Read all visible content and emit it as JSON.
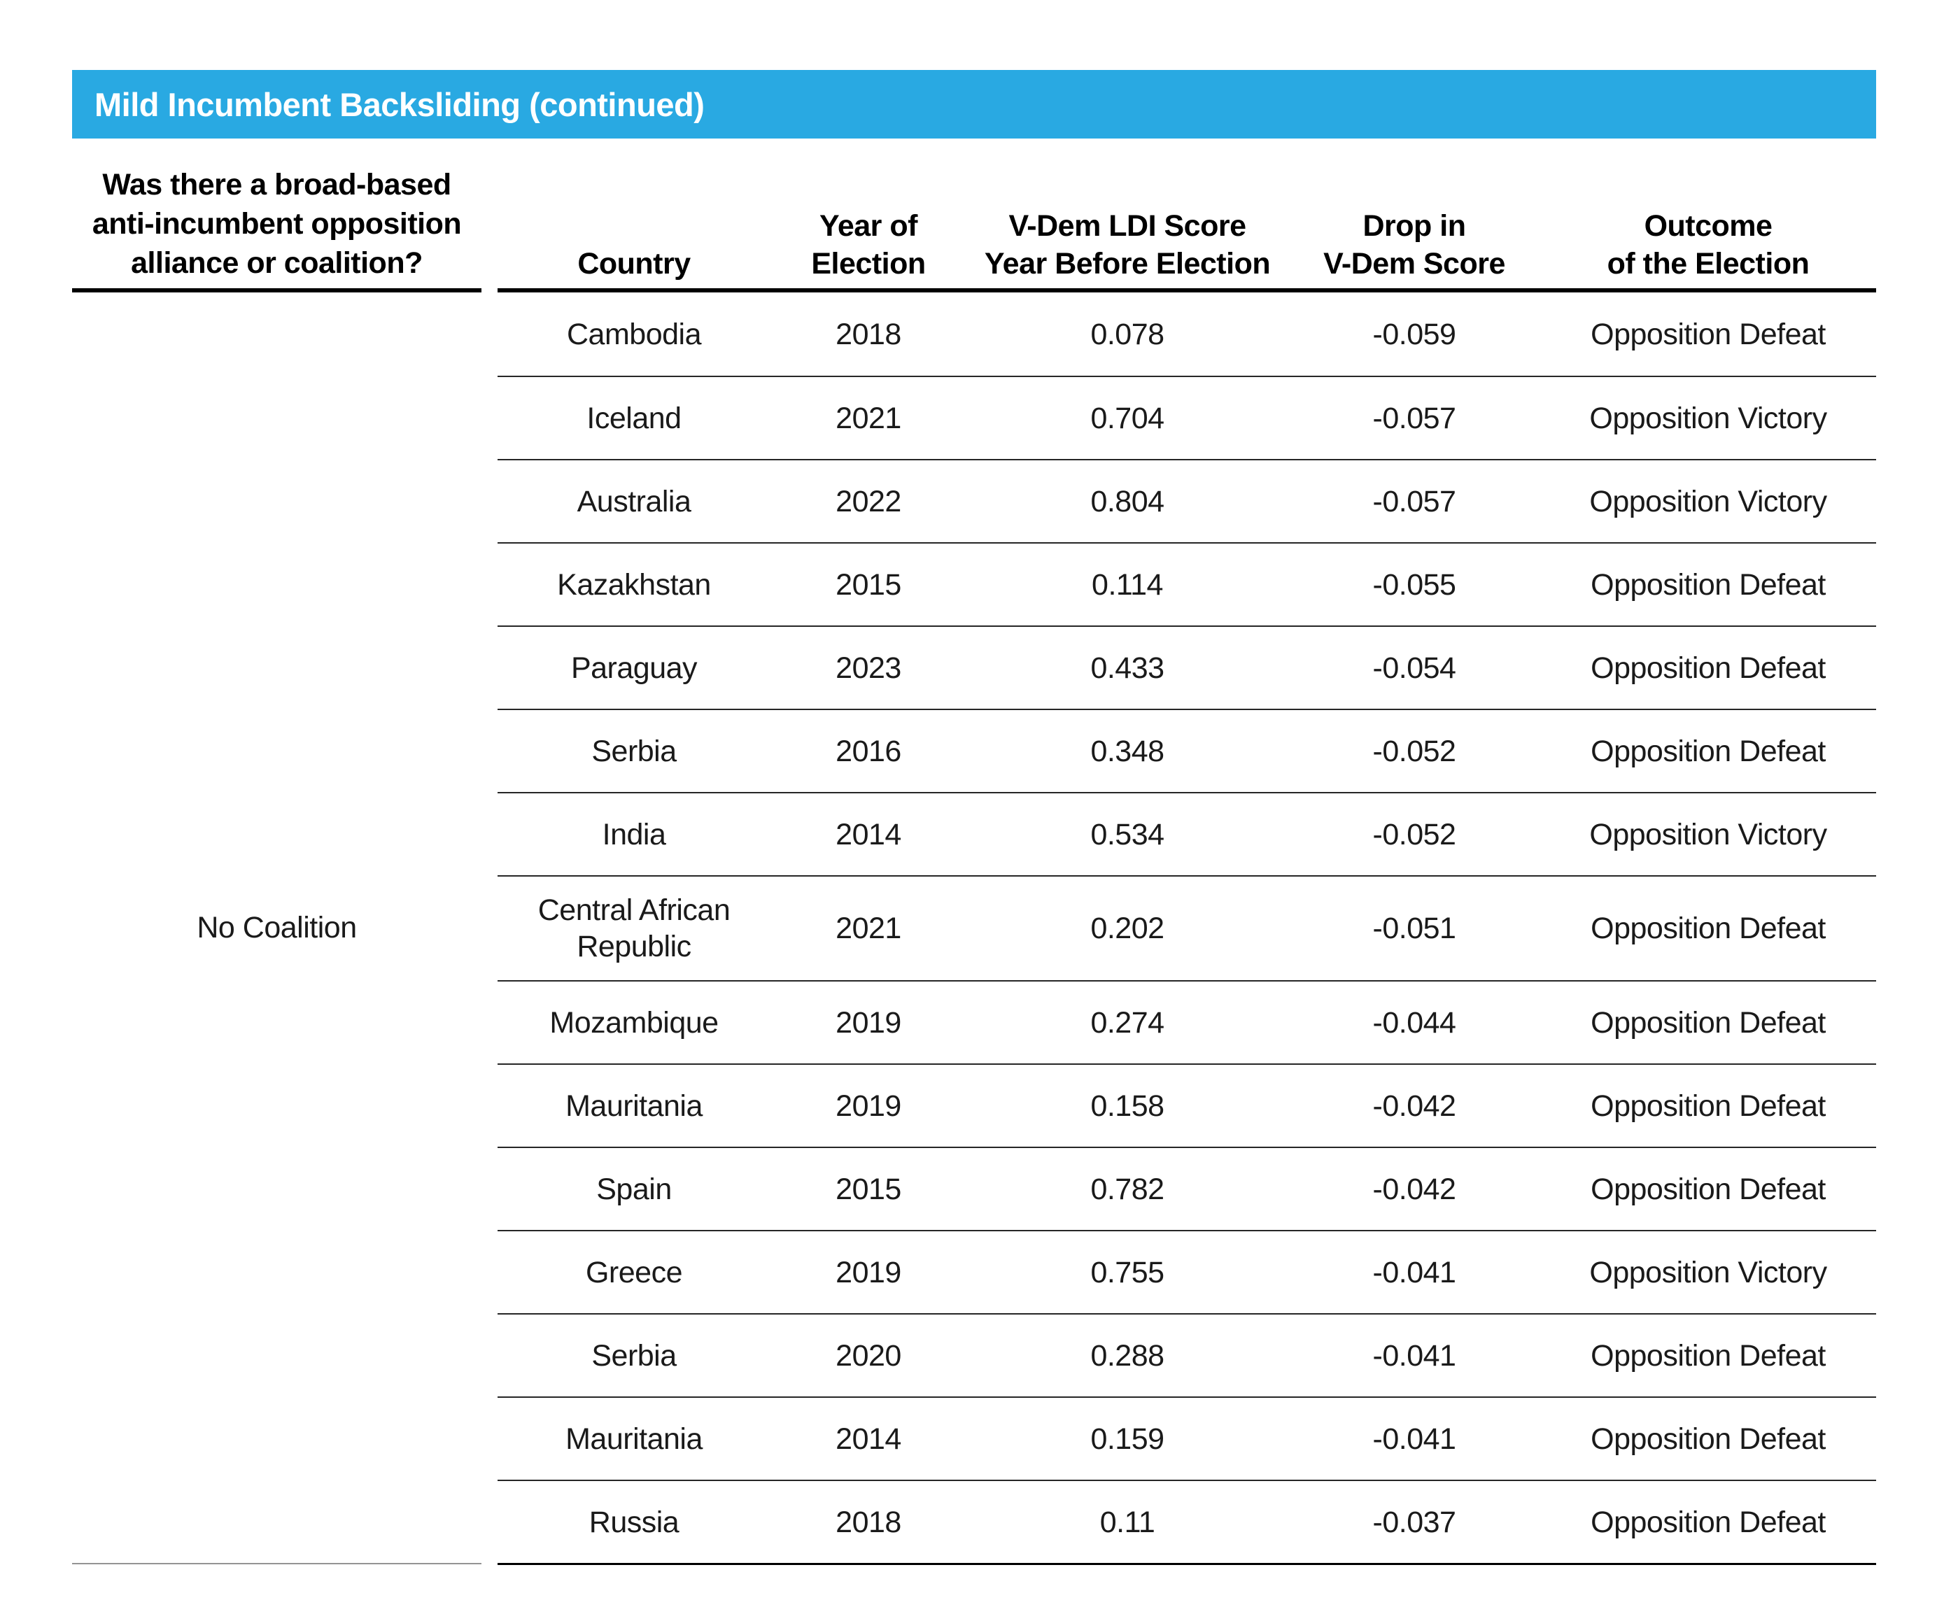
{
  "title_bar": {
    "text": "Mild Incumbent Backsliding (continued)",
    "background_color": "#29A9E2",
    "text_color": "#FFFFFF"
  },
  "left_column": {
    "header_lines": [
      "Was there a broad-based",
      "anti-incumbent opposition",
      "alliance or coalition?"
    ],
    "group_label": "No Coalition"
  },
  "table": {
    "columns": [
      {
        "id": "country",
        "lines": [
          "Country"
        ]
      },
      {
        "id": "year",
        "lines": [
          "Year of",
          "Election"
        ]
      },
      {
        "id": "score",
        "lines": [
          "V-Dem LDI Score",
          "Year Before Election"
        ]
      },
      {
        "id": "drop",
        "lines": [
          "Drop in",
          "V-Dem Score"
        ]
      },
      {
        "id": "outcome",
        "lines": [
          "Outcome",
          "of the Election"
        ]
      }
    ],
    "rows": [
      {
        "country": "Cambodia",
        "year": "2018",
        "score": "0.078",
        "drop": "-0.059",
        "outcome": "Opposition Defeat"
      },
      {
        "country": "Iceland",
        "year": "2021",
        "score": "0.704",
        "drop": "-0.057",
        "outcome": "Opposition Victory"
      },
      {
        "country": "Australia",
        "year": "2022",
        "score": "0.804",
        "drop": "-0.057",
        "outcome": "Opposition Victory"
      },
      {
        "country": "Kazakhstan",
        "year": "2015",
        "score": "0.114",
        "drop": "-0.055",
        "outcome": "Opposition Defeat"
      },
      {
        "country": "Paraguay",
        "year": "2023",
        "score": "0.433",
        "drop": "-0.054",
        "outcome": "Opposition Defeat"
      },
      {
        "country": "Serbia",
        "year": "2016",
        "score": "0.348",
        "drop": "-0.052",
        "outcome": "Opposition Defeat"
      },
      {
        "country": "India",
        "year": "2014",
        "score": "0.534",
        "drop": "-0.052",
        "outcome": "Opposition Victory"
      },
      {
        "country": "Central African Republic",
        "year": "2021",
        "score": "0.202",
        "drop": "-0.051",
        "outcome": "Opposition Defeat"
      },
      {
        "country": "Mozambique",
        "year": "2019",
        "score": "0.274",
        "drop": "-0.044",
        "outcome": "Opposition Defeat"
      },
      {
        "country": "Mauritania",
        "year": "2019",
        "score": "0.158",
        "drop": "-0.042",
        "outcome": "Opposition Defeat"
      },
      {
        "country": "Spain",
        "year": "2015",
        "score": "0.782",
        "drop": "-0.042",
        "outcome": "Opposition Defeat"
      },
      {
        "country": "Greece",
        "year": "2019",
        "score": "0.755",
        "drop": "-0.041",
        "outcome": "Opposition Victory"
      },
      {
        "country": "Serbia",
        "year": "2020",
        "score": "0.288",
        "drop": "-0.041",
        "outcome": "Opposition Defeat"
      },
      {
        "country": "Mauritania",
        "year": "2014",
        "score": "0.159",
        "drop": "-0.041",
        "outcome": "Opposition Defeat"
      },
      {
        "country": "Russia",
        "year": "2018",
        "score": "0.11",
        "drop": "-0.037",
        "outcome": "Opposition Defeat"
      }
    ]
  }
}
